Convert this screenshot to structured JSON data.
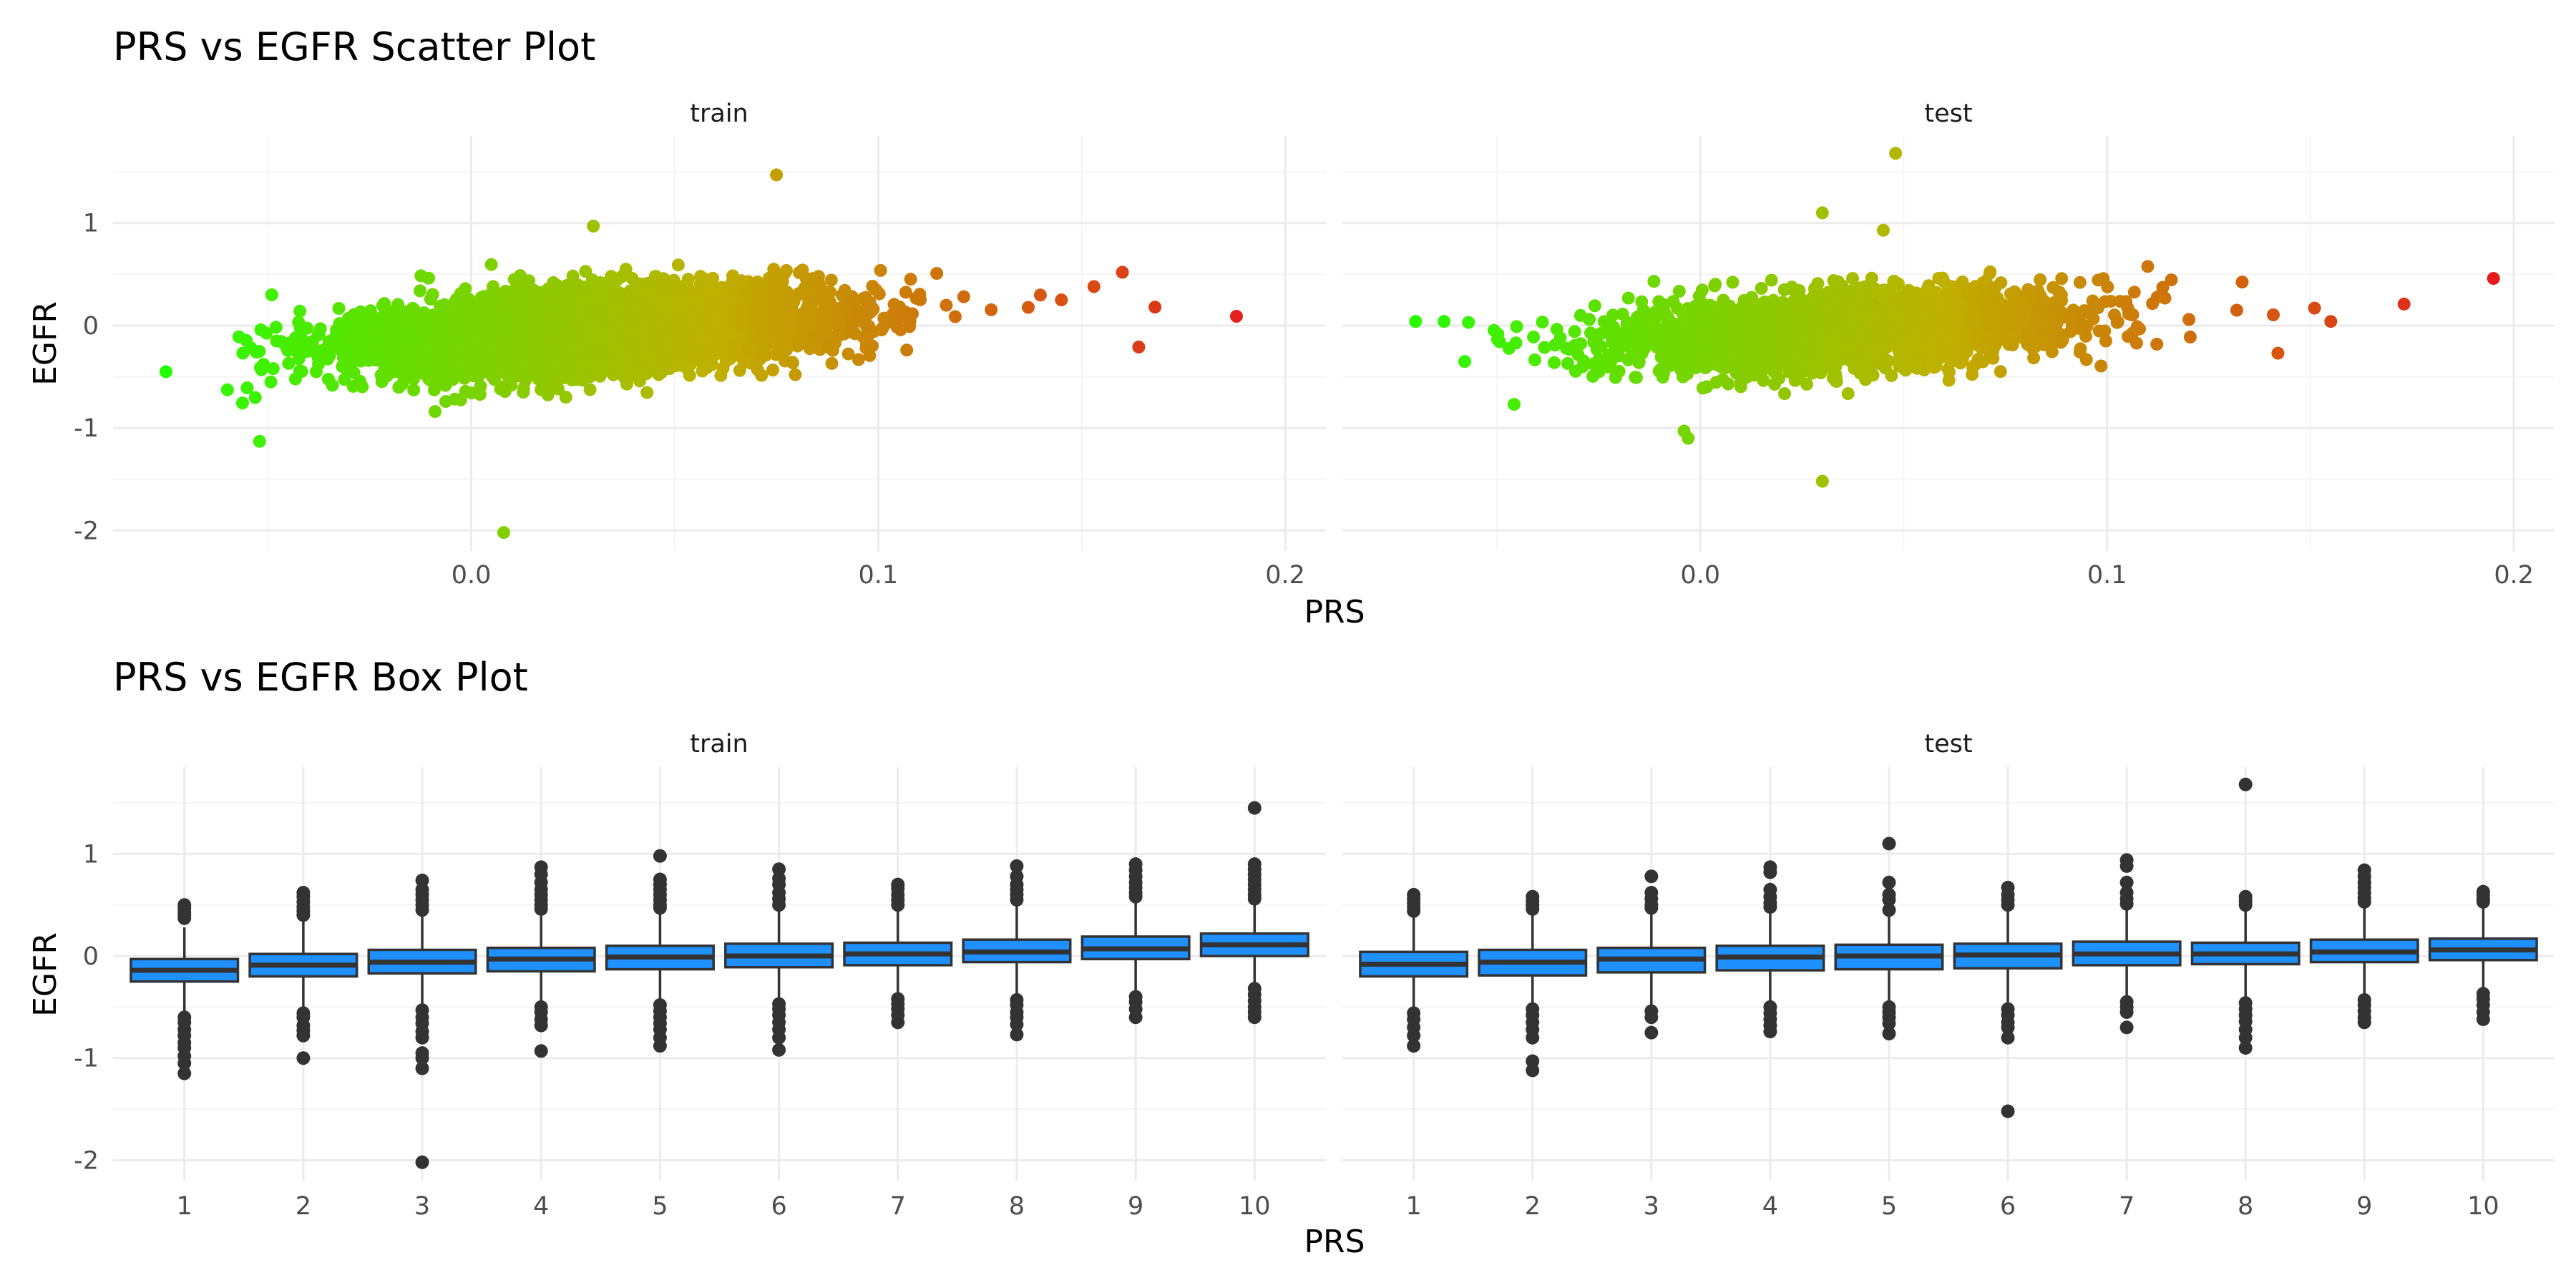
{
  "chart_data": [
    {
      "type": "scatter",
      "title": "PRS vs EGFR Scatter Plot",
      "xlabel": "PRS",
      "ylabel": "EGFR",
      "facets": [
        "train",
        "test"
      ],
      "xlim": [
        -0.088,
        0.21
      ],
      "ylim": [
        -2.2,
        1.85
      ],
      "x_ticks": [
        0.0,
        0.1,
        0.2
      ],
      "x_tick_labels": [
        "0.0",
        "0.1",
        "0.2"
      ],
      "y_ticks": [
        -2,
        -1,
        0,
        1
      ],
      "y_tick_labels": [
        "-2",
        "-1",
        "0",
        "1"
      ],
      "color_scale": {
        "low": "#22ff00",
        "mid": "#c0b000",
        "high": "#e41a1c",
        "domain": [
          -0.075,
          0.195
        ]
      },
      "trend": {
        "intercept": -0.13,
        "slope": 2.4,
        "spread": 0.19
      },
      "grid": true,
      "legend": "none",
      "point_color": "gradient by PRS",
      "series": [
        {
          "facet": "train",
          "n_points": 5000,
          "x_mean": 0.03,
          "x_sd": 0.028,
          "notable_points": [
            {
              "x": 0.075,
              "y": 1.47
            },
            {
              "x": 0.03,
              "y": 0.97
            },
            {
              "x": 0.008,
              "y": -2.02
            },
            {
              "x": -0.052,
              "y": -1.13
            },
            {
              "x": -0.075,
              "y": -0.45
            },
            {
              "x": -0.049,
              "y": 0.3
            },
            {
              "x": 0.188,
              "y": 0.09
            },
            {
              "x": 0.164,
              "y": -0.21
            },
            {
              "x": 0.16,
              "y": 0.52
            },
            {
              "x": 0.168,
              "y": 0.18
            },
            {
              "x": 0.153,
              "y": 0.38
            },
            {
              "x": 0.145,
              "y": 0.25
            }
          ]
        },
        {
          "facet": "test",
          "n_points": 2200,
          "x_mean": 0.035,
          "x_sd": 0.028,
          "notable_points": [
            {
              "x": 0.048,
              "y": 1.68
            },
            {
              "x": 0.03,
              "y": 1.1
            },
            {
              "x": 0.045,
              "y": 0.93
            },
            {
              "x": 0.03,
              "y": -1.52
            },
            {
              "x": -0.003,
              "y": -1.1
            },
            {
              "x": -0.004,
              "y": -1.03
            },
            {
              "x": -0.07,
              "y": 0.04
            },
            {
              "x": -0.063,
              "y": 0.04
            },
            {
              "x": -0.057,
              "y": 0.03
            },
            {
              "x": 0.195,
              "y": 0.46
            },
            {
              "x": 0.173,
              "y": 0.21
            },
            {
              "x": 0.155,
              "y": 0.04
            },
            {
              "x": 0.151,
              "y": 0.17
            },
            {
              "x": 0.142,
              "y": -0.27
            }
          ]
        }
      ]
    },
    {
      "type": "box",
      "title": "PRS vs EGFR Box Plot",
      "xlabel": "PRS",
      "ylabel": "EGFR",
      "facets": [
        "train",
        "test"
      ],
      "categories": [
        "1",
        "2",
        "3",
        "4",
        "5",
        "6",
        "7",
        "8",
        "9",
        "10"
      ],
      "ylim": [
        -2.2,
        1.85
      ],
      "y_ticks": [
        -2,
        -1,
        0,
        1
      ],
      "y_tick_labels": [
        "-2",
        "-1",
        "0",
        "1"
      ],
      "box_fill": "#1e90ff",
      "box_line": "#333333",
      "grid": true,
      "legend": "none",
      "series": [
        {
          "facet": "train",
          "boxes": [
            {
              "q1": -0.25,
              "median": -0.14,
              "q3": -0.03,
              "lower": -0.55,
              "upper": 0.28,
              "outliers": [
                0.5,
                0.47,
                0.43,
                0.4,
                0.37,
                -0.6,
                -0.65,
                -0.72,
                -0.78,
                -0.85,
                -0.9,
                -0.98,
                -1.05,
                -1.15
              ]
            },
            {
              "q1": -0.2,
              "median": -0.09,
              "q3": 0.02,
              "lower": -0.52,
              "upper": 0.35,
              "outliers": [
                0.62,
                0.58,
                0.53,
                0.48,
                0.44,
                0.4,
                -0.56,
                -0.6,
                -0.68,
                -0.73,
                -0.78,
                -1.0
              ]
            },
            {
              "q1": -0.17,
              "median": -0.06,
              "q3": 0.06,
              "lower": -0.5,
              "upper": 0.4,
              "outliers": [
                0.74,
                0.65,
                0.6,
                0.55,
                0.5,
                0.45,
                -0.53,
                -0.6,
                -0.66,
                -0.74,
                -0.8,
                -0.95,
                -1.0,
                -1.1,
                -2.02
              ]
            },
            {
              "q1": -0.15,
              "median": -0.03,
              "q3": 0.08,
              "lower": -0.48,
              "upper": 0.42,
              "outliers": [
                0.87,
                0.8,
                0.72,
                0.65,
                0.6,
                0.55,
                0.5,
                0.46,
                -0.5,
                -0.55,
                -0.62,
                -0.68,
                -0.93
              ]
            },
            {
              "q1": -0.13,
              "median": -0.01,
              "q3": 0.1,
              "lower": -0.46,
              "upper": 0.44,
              "outliers": [
                0.98,
                0.75,
                0.7,
                0.65,
                0.6,
                0.55,
                0.5,
                0.47,
                -0.48,
                -0.54,
                -0.6,
                -0.66,
                -0.72,
                -0.8,
                -0.88
              ]
            },
            {
              "q1": -0.11,
              "median": 0.0,
              "q3": 0.12,
              "lower": -0.44,
              "upper": 0.46,
              "outliers": [
                0.85,
                0.76,
                0.7,
                0.62,
                0.56,
                0.5,
                -0.47,
                -0.52,
                -0.58,
                -0.65,
                -0.72,
                -0.8,
                -0.92
              ]
            },
            {
              "q1": -0.09,
              "median": 0.02,
              "q3": 0.13,
              "lower": -0.4,
              "upper": 0.45,
              "outliers": [
                0.7,
                0.66,
                0.6,
                0.55,
                0.5,
                -0.42,
                -0.47,
                -0.52,
                -0.58,
                -0.65
              ]
            },
            {
              "q1": -0.06,
              "median": 0.04,
              "q3": 0.16,
              "lower": -0.4,
              "upper": 0.49,
              "outliers": [
                0.88,
                0.78,
                0.7,
                0.65,
                0.6,
                0.55,
                -0.43,
                -0.48,
                -0.55,
                -0.6,
                -0.67,
                -0.77
              ]
            },
            {
              "q1": -0.03,
              "median": 0.07,
              "q3": 0.19,
              "lower": -0.37,
              "upper": 0.53,
              "outliers": [
                0.9,
                0.84,
                0.78,
                0.72,
                0.67,
                0.62,
                0.58,
                -0.4,
                -0.45,
                -0.52,
                -0.6
              ]
            },
            {
              "q1": 0.0,
              "median": 0.11,
              "q3": 0.22,
              "lower": -0.3,
              "upper": 0.52,
              "outliers": [
                1.45,
                0.9,
                0.85,
                0.8,
                0.75,
                0.7,
                0.65,
                0.6,
                0.56,
                -0.32,
                -0.38,
                -0.44,
                -0.5,
                -0.55,
                -0.6
              ]
            }
          ]
        },
        {
          "facet": "test",
          "boxes": [
            {
              "q1": -0.2,
              "median": -0.08,
              "q3": 0.04,
              "lower": -0.52,
              "upper": 0.4,
              "outliers": [
                0.6,
                0.56,
                0.52,
                0.48,
                0.44,
                -0.56,
                -0.62,
                -0.7,
                -0.78,
                -0.88
              ]
            },
            {
              "q1": -0.19,
              "median": -0.06,
              "q3": 0.06,
              "lower": -0.5,
              "upper": 0.42,
              "outliers": [
                0.58,
                0.54,
                0.5,
                0.46,
                -0.52,
                -0.58,
                -0.65,
                -0.72,
                -0.8,
                -1.03,
                -1.12
              ]
            },
            {
              "q1": -0.16,
              "median": -0.03,
              "q3": 0.08,
              "lower": -0.5,
              "upper": 0.44,
              "outliers": [
                0.78,
                0.62,
                0.56,
                0.5,
                0.47,
                -0.54,
                -0.6,
                -0.75
              ]
            },
            {
              "q1": -0.14,
              "median": -0.01,
              "q3": 0.1,
              "lower": -0.48,
              "upper": 0.45,
              "outliers": [
                0.87,
                0.82,
                0.65,
                0.58,
                0.52,
                0.48,
                -0.5,
                -0.56,
                -0.62,
                -0.68,
                -0.74
              ]
            },
            {
              "q1": -0.13,
              "median": 0.0,
              "q3": 0.11,
              "lower": -0.47,
              "upper": 0.43,
              "outliers": [
                1.1,
                0.72,
                0.6,
                0.55,
                0.45,
                -0.5,
                -0.55,
                -0.6,
                -0.66,
                -0.76
              ]
            },
            {
              "q1": -0.12,
              "median": 0.01,
              "q3": 0.12,
              "lower": -0.48,
              "upper": 0.46,
              "outliers": [
                0.67,
                0.6,
                0.55,
                0.5,
                -0.52,
                -0.58,
                -0.65,
                -0.7,
                -0.8,
                -1.52
              ]
            },
            {
              "q1": -0.09,
              "median": 0.02,
              "q3": 0.14,
              "lower": -0.42,
              "upper": 0.48,
              "outliers": [
                0.94,
                0.88,
                0.72,
                0.62,
                0.56,
                0.51,
                -0.45,
                -0.5,
                -0.55,
                -0.7
              ]
            },
            {
              "q1": -0.08,
              "median": 0.02,
              "q3": 0.13,
              "lower": -0.42,
              "upper": 0.46,
              "outliers": [
                1.68,
                0.58,
                0.54,
                0.5,
                -0.46,
                -0.52,
                -0.58,
                -0.64,
                -0.72,
                -0.8,
                -0.9
              ]
            },
            {
              "q1": -0.06,
              "median": 0.04,
              "q3": 0.16,
              "lower": -0.4,
              "upper": 0.5,
              "outliers": [
                0.84,
                0.78,
                0.72,
                0.67,
                0.62,
                0.57,
                0.53,
                -0.43,
                -0.48,
                -0.54,
                -0.6,
                -0.65
              ]
            },
            {
              "q1": -0.04,
              "median": 0.06,
              "q3": 0.17,
              "lower": -0.35,
              "upper": 0.5,
              "outliers": [
                0.63,
                0.6,
                0.56,
                0.53,
                -0.37,
                -0.42,
                -0.48,
                -0.55,
                -0.62
              ]
            }
          ]
        }
      ]
    }
  ]
}
